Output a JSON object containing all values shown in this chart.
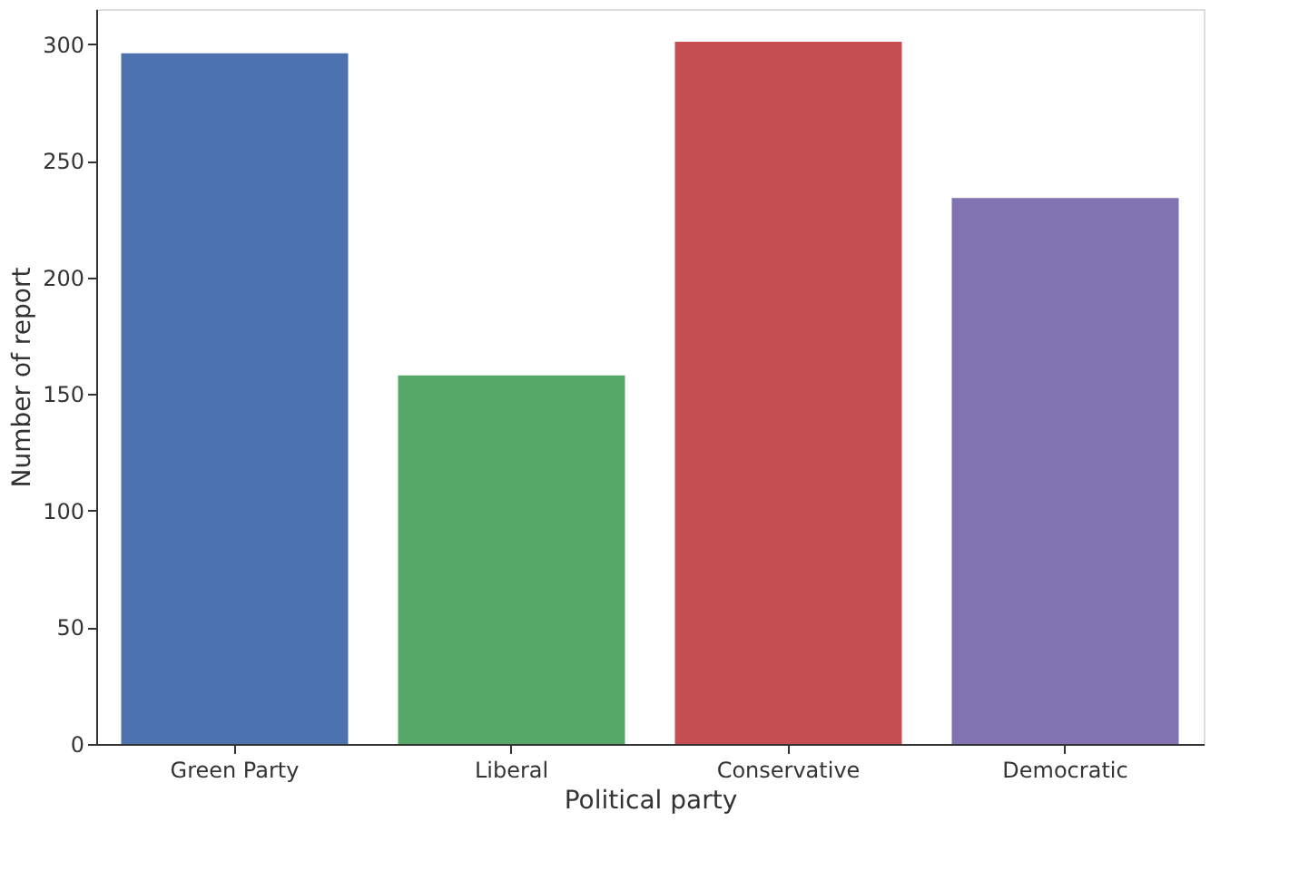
{
  "chart_data": {
    "type": "bar",
    "xlabel": "Political party",
    "ylabel": "Number of report",
    "categories": [
      "Green Party",
      "Liberal",
      "Conservative",
      "Democratic"
    ],
    "values": [
      296,
      158,
      301,
      234
    ],
    "colors": [
      "#4c72b0",
      "#55a868",
      "#c44e52",
      "#8172b2"
    ],
    "ylim": [
      0,
      315
    ],
    "yticks": [
      0,
      50,
      100,
      150,
      200,
      250,
      300
    ],
    "grid": false,
    "legend": false
  }
}
